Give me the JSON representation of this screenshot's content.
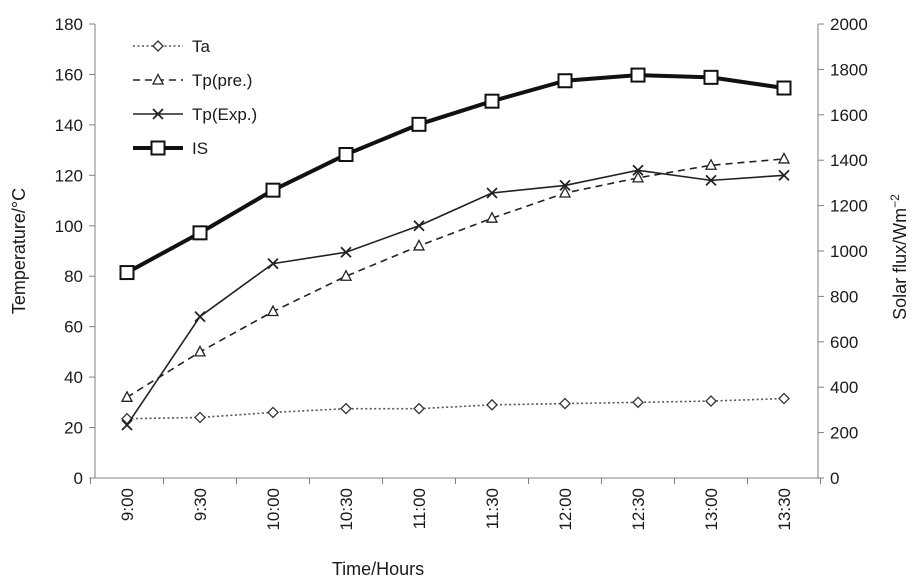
{
  "chart_data": {
    "type": "line",
    "categories": [
      "9:00",
      "9:30",
      "10:00",
      "10:30",
      "11:00",
      "11:30",
      "12:00",
      "12:30",
      "13:00",
      "13:30"
    ],
    "xlabel": "Time/Hours",
    "ylabel_left": "Temperature/°C",
    "ylabel_right_base": "Solar flux/Wm",
    "ylabel_right_exp": "−2",
    "ylim_left": [
      0,
      180
    ],
    "yticks_left": [
      0,
      20,
      40,
      60,
      80,
      100,
      120,
      140,
      160,
      180
    ],
    "ylim_right": [
      0,
      2000
    ],
    "yticks_right": [
      0,
      200,
      400,
      600,
      800,
      1000,
      1200,
      1400,
      1600,
      1800,
      2000
    ],
    "grid": false,
    "legend_position": "top-left",
    "series": [
      {
        "name": "Ta",
        "axis": "left",
        "marker": "diamond",
        "line": "dotted",
        "values": [
          23.5,
          24,
          26,
          27.5,
          27.5,
          29,
          29.5,
          30,
          30.5,
          31.5
        ]
      },
      {
        "name": "Tp(pre.)",
        "axis": "left",
        "marker": "triangle",
        "line": "dashed",
        "values": [
          32,
          50,
          66,
          80,
          92,
          103,
          113,
          119,
          124,
          126.5
        ]
      },
      {
        "name": "Tp(Exp.)",
        "axis": "left",
        "marker": "x",
        "line": "solid",
        "values": [
          21,
          64,
          85,
          89.5,
          100,
          113,
          116,
          122,
          118,
          120
        ]
      },
      {
        "name": "IS",
        "axis": "right",
        "marker": "square",
        "line": "thick",
        "values": [
          905,
          1080,
          1268,
          1425,
          1558,
          1660,
          1750,
          1775,
          1765,
          1718
        ]
      }
    ]
  }
}
